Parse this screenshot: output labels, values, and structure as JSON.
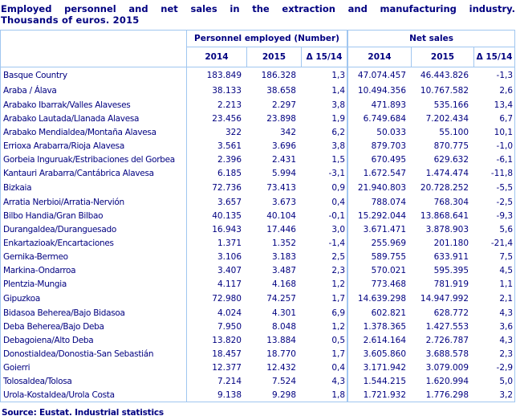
{
  "title": {
    "line1": "Employed personnel and net sales in the extraction and manufacturing industry.",
    "line2": "Thousands of euros. 2015"
  },
  "table": {
    "group_headers": [
      {
        "label": "Personnel employed (Number)"
      },
      {
        "label": "Net sales"
      }
    ],
    "column_headers": [
      "2014",
      "2015",
      "Δ 15/14",
      "2014",
      "2015",
      "Δ 15/14"
    ],
    "rows": [
      {
        "label": "Basque Country",
        "bold": true,
        "values": [
          "183.849",
          "186.328",
          "1,3",
          "47.074.457",
          "46.443.826",
          "-1,3"
        ]
      },
      {
        "label": "Araba / Álava",
        "bold": true,
        "values": [
          "38.133",
          "38.658",
          "1,4",
          "10.494.356",
          "10.767.582",
          "2,6"
        ]
      },
      {
        "label": "Arabako Ibarrak/Valles Alaveses",
        "bold": false,
        "values": [
          "2.213",
          "2.297",
          "3,8",
          "471.893",
          "535.166",
          "13,4"
        ]
      },
      {
        "label": "Arabako Lautada/Llanada Alavesa",
        "bold": false,
        "values": [
          "23.456",
          "23.898",
          "1,9",
          "6.749.684",
          "7.202.434",
          "6,7"
        ]
      },
      {
        "label": "Arabako Mendialdea/Montaña Alavesa",
        "bold": false,
        "values": [
          "322",
          "342",
          "6,2",
          "50.033",
          "55.100",
          "10,1"
        ]
      },
      {
        "label": "Errioxa Arabarra/Rioja Alavesa",
        "bold": false,
        "values": [
          "3.561",
          "3.696",
          "3,8",
          "879.703",
          "870.775",
          "-1,0"
        ]
      },
      {
        "label": "Gorbeia Inguruak/Estribaciones del Gorbea",
        "bold": false,
        "values": [
          "2.396",
          "2.431",
          "1,5",
          "670.495",
          "629.632",
          "-6,1"
        ]
      },
      {
        "label": "Kantauri Arabarra/Cantábrica Alavesa",
        "bold": false,
        "values": [
          "6.185",
          "5.994",
          "-3,1",
          "1.672.547",
          "1.474.474",
          "-11,8"
        ]
      },
      {
        "label": "Bizkaia",
        "bold": true,
        "values": [
          "72.736",
          "73.413",
          "0,9",
          "21.940.803",
          "20.728.252",
          "-5,5"
        ]
      },
      {
        "label": "Arratia Nerbioi/Arratia-Nervión",
        "bold": false,
        "values": [
          "3.657",
          "3.673",
          "0,4",
          "788.074",
          "768.304",
          "-2,5"
        ]
      },
      {
        "label": "Bilbo Handia/Gran Bilbao",
        "bold": false,
        "values": [
          "40.135",
          "40.104",
          "-0,1",
          "15.292.044",
          "13.868.641",
          "-9,3"
        ]
      },
      {
        "label": "Durangaldea/Duranguesado",
        "bold": false,
        "values": [
          "16.943",
          "17.446",
          "3,0",
          "3.671.471",
          "3.878.903",
          "5,6"
        ]
      },
      {
        "label": "Enkartazioak/Encartaciones",
        "bold": false,
        "values": [
          "1.371",
          "1.352",
          "-1,4",
          "255.969",
          "201.180",
          "-21,4"
        ]
      },
      {
        "label": "Gernika-Bermeo",
        "bold": false,
        "values": [
          "3.106",
          "3.183",
          "2,5",
          "589.755",
          "633.911",
          "7,5"
        ]
      },
      {
        "label": "Markina-Ondarroa",
        "bold": false,
        "values": [
          "3.407",
          "3.487",
          "2,3",
          "570.021",
          "595.395",
          "4,5"
        ]
      },
      {
        "label": "Plentzia-Mungia",
        "bold": false,
        "values": [
          "4.117",
          "4.168",
          "1,2",
          "773.468",
          "781.919",
          "1,1"
        ]
      },
      {
        "label": "Gipuzkoa",
        "bold": true,
        "values": [
          "72.980",
          "74.257",
          "1,7",
          "14.639.298",
          "14.947.992",
          "2,1"
        ]
      },
      {
        "label": "Bidasoa Beherea/Bajo Bidasoa",
        "bold": false,
        "values": [
          "4.024",
          "4.301",
          "6,9",
          "602.821",
          "628.772",
          "4,3"
        ]
      },
      {
        "label": "Deba Beherea/Bajo Deba",
        "bold": false,
        "values": [
          "7.950",
          "8.048",
          "1,2",
          "1.378.365",
          "1.427.553",
          "3,6"
        ]
      },
      {
        "label": "Debagoiena/Alto Deba",
        "bold": false,
        "values": [
          "13.820",
          "13.884",
          "0,5",
          "2.614.164",
          "2.726.787",
          "4,3"
        ]
      },
      {
        "label": "Donostialdea/Donostia-San Sebastián",
        "bold": false,
        "values": [
          "18.457",
          "18.770",
          "1,7",
          "3.605.860",
          "3.688.578",
          "2,3"
        ]
      },
      {
        "label": "Goierri",
        "bold": false,
        "values": [
          "12.377",
          "12.432",
          "0,4",
          "3.171.942",
          "3.079.009",
          "-2,9"
        ]
      },
      {
        "label": "Tolosaldea/Tolosa",
        "bold": false,
        "values": [
          "7.214",
          "7.524",
          "4,3",
          "1.544.215",
          "1.620.994",
          "5,0"
        ]
      },
      {
        "label": "Urola-Kostaldea/Urola Costa",
        "bold": false,
        "values": [
          "9.138",
          "9.298",
          "1,8",
          "1.721.932",
          "1.776.298",
          "3,2"
        ]
      }
    ]
  },
  "source": "Source: Eustat. Industrial statistics",
  "colors": {
    "text": "#000080",
    "border": "#A0C6F0"
  }
}
